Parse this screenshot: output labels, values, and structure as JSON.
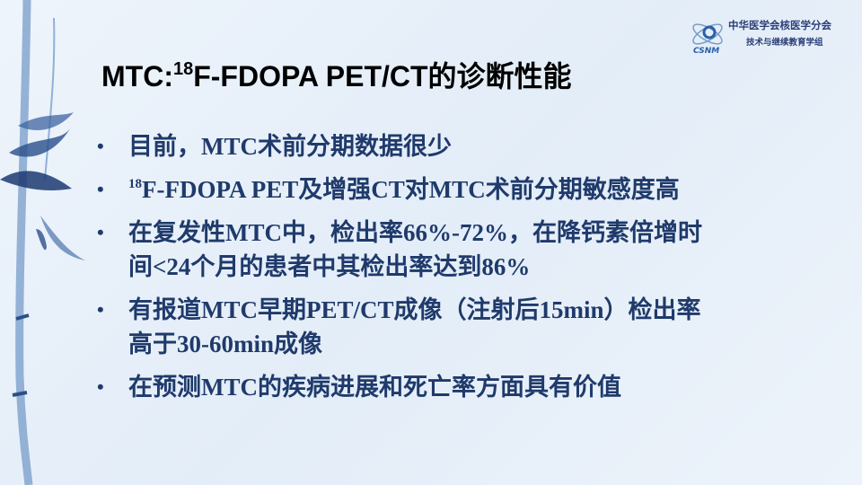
{
  "logo": {
    "org": "中华医学会核医学分会",
    "group": "技术与继续教育学组",
    "mark": "CSNM"
  },
  "title": {
    "prefix": "MTC:",
    "sup": "18",
    "rest": "F-FDOPA PET/CT的诊断性能"
  },
  "bullets": [
    {
      "sup": "",
      "lines": [
        "目前，MTC术前分期数据很少"
      ]
    },
    {
      "sup": "18",
      "lines": [
        "F-FDOPA PET及增强CT对MTC术前分期敏感度高"
      ]
    },
    {
      "sup": "",
      "lines": [
        "在复发性MTC中，检出率66%-72%，在降钙素倍增时",
        "间<24个月的患者中其检出率达到86%"
      ]
    },
    {
      "sup": "",
      "lines": [
        "有报道MTC早期PET/CT成像（注射后15min）检出率",
        "高于30-60min成像"
      ]
    },
    {
      "sup": "",
      "lines": [
        "在预测MTC的疾病进展和死亡率方面具有价值"
      ]
    }
  ],
  "colors": {
    "text": "#1f3a6b",
    "title": "#000000",
    "background": "#e8f0f9"
  }
}
